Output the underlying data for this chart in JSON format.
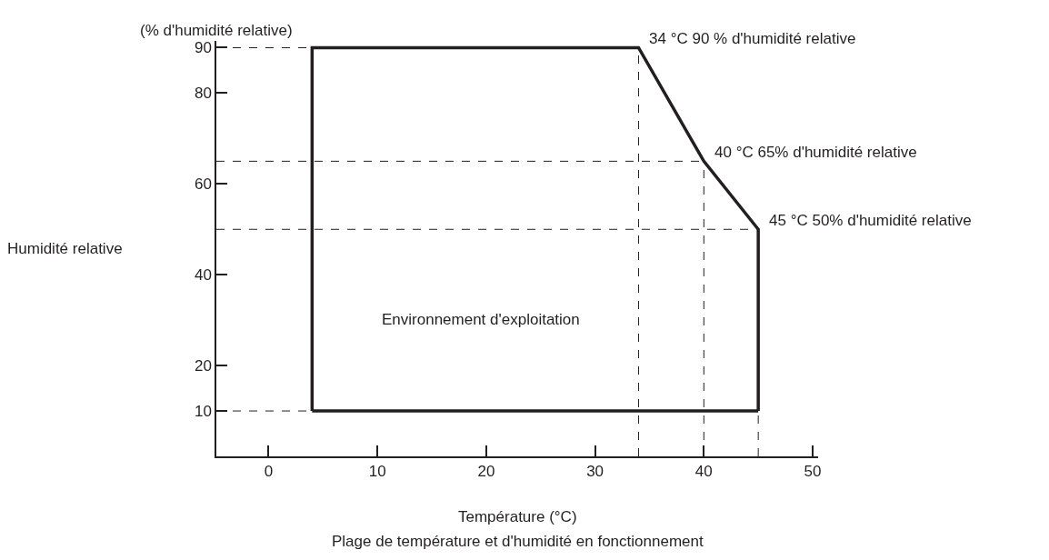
{
  "chart_data": {
    "type": "line",
    "title": "Plage de température et d'humidité en fonctionnement",
    "xlabel": "Température (°C)",
    "ylabel": "Humidité relative",
    "series": [
      {
        "color": "#231f20",
        "x": [
          4,
          4,
          34,
          40,
          45,
          45
        ],
        "values": [
          10,
          90,
          90,
          65,
          50,
          10
        ]
      },
      {
        "color": "#231f20",
        "x": [
          4,
          45
        ],
        "values": [
          10,
          10
        ]
      }
    ],
    "xlim": [
      -4.8,
      50.5
    ],
    "ylim": [
      0,
      91.5
    ],
    "xticks": [
      0,
      10,
      20,
      30,
      40,
      50
    ],
    "yticks": [
      10,
      20,
      40,
      60,
      80,
      90
    ],
    "grid": false,
    "marker": "none",
    "line_style": "solid",
    "ref_lines": [
      {
        "axis": "y",
        "value": 90,
        "color": "#231f20",
        "line_style": "dashed"
      },
      {
        "axis": "y",
        "value": 65,
        "color": "#231f20",
        "line_style": "dashed"
      },
      {
        "axis": "y",
        "value": 50,
        "color": "#231f20",
        "line_style": "dashed"
      },
      {
        "axis": "y",
        "value": 10,
        "color": "#231f20",
        "line_style": "dashed"
      },
      {
        "axis": "x",
        "value": 34,
        "color": "#231f20",
        "line_style": "dashed"
      },
      {
        "axis": "x",
        "value": 40,
        "color": "#231f20",
        "line_style": "dashed"
      },
      {
        "axis": "x",
        "value": 45,
        "color": "#231f20",
        "line_style": "dashed"
      }
    ],
    "annotations": [
      "(% d'humidité relative)",
      "Environnement d'exploitation",
      {
        "text": "34 °C 90 % d'humidité relative",
        "x": 34,
        "y": 90
      },
      {
        "text": "40 °C 65% d'humidité relative",
        "x": 40,
        "y": 65
      },
      {
        "text": "45 °C 50% d'humidité relative",
        "x": 45,
        "y": 50
      }
    ]
  }
}
